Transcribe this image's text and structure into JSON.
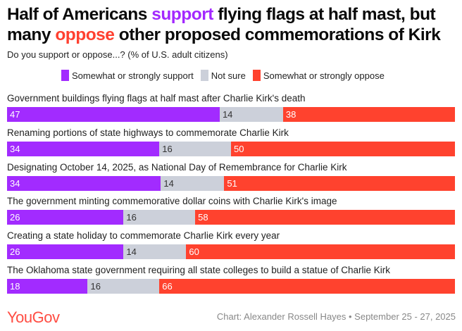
{
  "title": {
    "part1": "Half of Americans ",
    "highlight1": "support",
    "part2": " flying flags at half mast, but many ",
    "highlight2": "oppose",
    "part3": " other proposed commemorations of Kirk"
  },
  "subtitle": "Do you support or oppose...? (% of U.S. adult citizens)",
  "colors": {
    "support": "#a22bff",
    "not_sure": "#ccd0da",
    "oppose": "#ff422e"
  },
  "chart_data": {
    "type": "bar",
    "orientation": "horizontal-stacked-100",
    "legend": [
      "Somewhat or strongly support",
      "Not sure",
      "Somewhat or strongly oppose"
    ],
    "legend_placement": "top",
    "categories": [
      "Government buildings flying flags at half mast after Charlie Kirk's death",
      "Renaming portions of state highways to commemorate Charlie Kirk",
      "Designating October 14, 2025, as National Day of Remembrance for Charlie Kirk",
      "The government minting commemorative dollar coins with Charlie Kirk's image",
      "Creating a state holiday to commemorate Charlie Kirk every year",
      "The Oklahoma state government requiring all state colleges to build a statue of Charlie Kirk"
    ],
    "series": [
      {
        "name": "Somewhat or strongly support",
        "values": [
          47,
          34,
          34,
          26,
          26,
          18
        ]
      },
      {
        "name": "Not sure",
        "values": [
          14,
          16,
          14,
          16,
          14,
          16
        ]
      },
      {
        "name": "Somewhat or strongly oppose",
        "values": [
          38,
          50,
          51,
          58,
          60,
          66
        ]
      }
    ]
  },
  "footer": {
    "logo": "YouGov",
    "credit": "Chart: Alexander Rossell Hayes • September 25 - 27, 2025"
  }
}
